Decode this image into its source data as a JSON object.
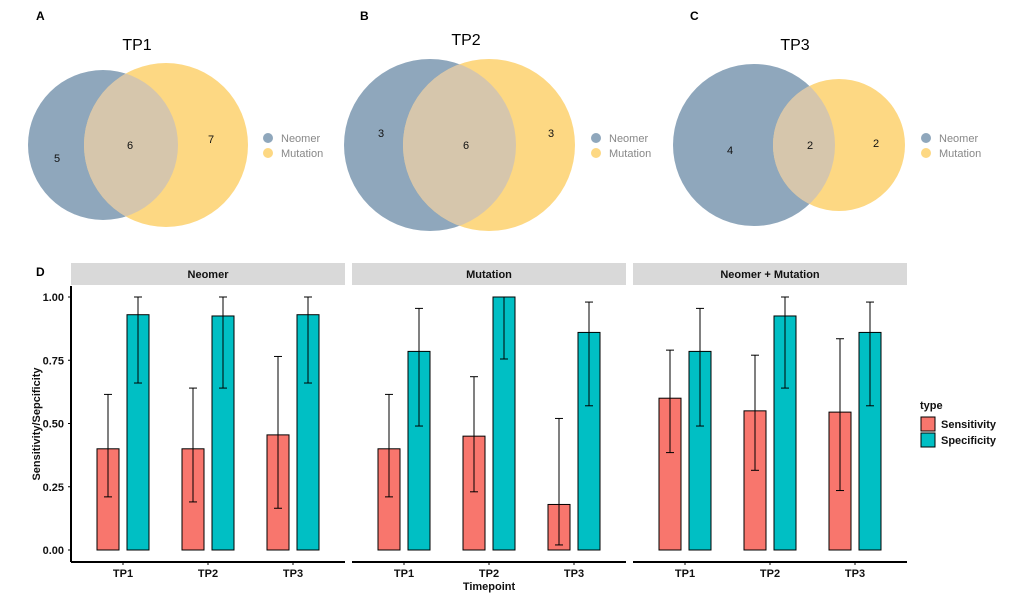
{
  "colors": {
    "neomer": "#8fa7bc",
    "mutation": "#fdd883",
    "sensitivity": "#f8766d",
    "specificity": "#00bfc4",
    "strip": "#d9d9d9"
  },
  "venn_legend": [
    "Neomer",
    "Mutation"
  ],
  "chart_data": [
    {
      "type": "venn",
      "panel": "A",
      "title": "TP1",
      "sets": [
        "Neomer",
        "Mutation"
      ],
      "only_a": 5,
      "overlap": 6,
      "only_b": 7
    },
    {
      "type": "venn",
      "panel": "B",
      "title": "TP2",
      "sets": [
        "Neomer",
        "Mutation"
      ],
      "only_a": 3,
      "overlap": 6,
      "only_b": 3
    },
    {
      "type": "venn",
      "panel": "C",
      "title": "TP3",
      "sets": [
        "Neomer",
        "Mutation"
      ],
      "only_a": 4,
      "overlap": 2,
      "only_b": 2
    },
    {
      "type": "bar",
      "panel": "D",
      "xlabel": "Timepoint",
      "ylabel": "Sensitivity/Sepcificity",
      "ylim": [
        0,
        1
      ],
      "yticks": [
        "0.00",
        "0.25",
        "0.50",
        "0.75",
        "1.00"
      ],
      "categories": [
        "TP1",
        "TP2",
        "TP3"
      ],
      "legend_title": "type",
      "legend": [
        "Sensitivity",
        "Specificity"
      ],
      "facets": [
        {
          "name": "Neomer",
          "series": [
            {
              "name": "Sensitivity",
              "values": [
                0.4,
                0.4,
                0.455
              ],
              "lower": [
                0.21,
                0.19,
                0.165
              ],
              "upper": [
                0.615,
                0.64,
                0.765
              ]
            },
            {
              "name": "Specificity",
              "values": [
                0.93,
                0.925,
                0.93
              ],
              "lower": [
                0.66,
                0.64,
                0.66
              ],
              "upper": [
                1.0,
                1.0,
                1.0
              ]
            }
          ]
        },
        {
          "name": "Mutation",
          "series": [
            {
              "name": "Sensitivity",
              "values": [
                0.4,
                0.45,
                0.18
              ],
              "lower": [
                0.21,
                0.23,
                0.02
              ],
              "upper": [
                0.615,
                0.685,
                0.52
              ]
            },
            {
              "name": "Specificity",
              "values": [
                0.785,
                1.0,
                0.86
              ],
              "lower": [
                0.49,
                0.755,
                0.57
              ],
              "upper": [
                0.955,
                1.0,
                0.98
              ]
            }
          ]
        },
        {
          "name": "Neomer + Mutation",
          "series": [
            {
              "name": "Sensitivity",
              "values": [
                0.6,
                0.55,
                0.545
              ],
              "lower": [
                0.385,
                0.315,
                0.235
              ],
              "upper": [
                0.79,
                0.77,
                0.835
              ]
            },
            {
              "name": "Specificity",
              "values": [
                0.785,
                0.925,
                0.86
              ],
              "lower": [
                0.49,
                0.64,
                0.57
              ],
              "upper": [
                0.955,
                1.0,
                0.98
              ]
            }
          ]
        }
      ]
    }
  ]
}
